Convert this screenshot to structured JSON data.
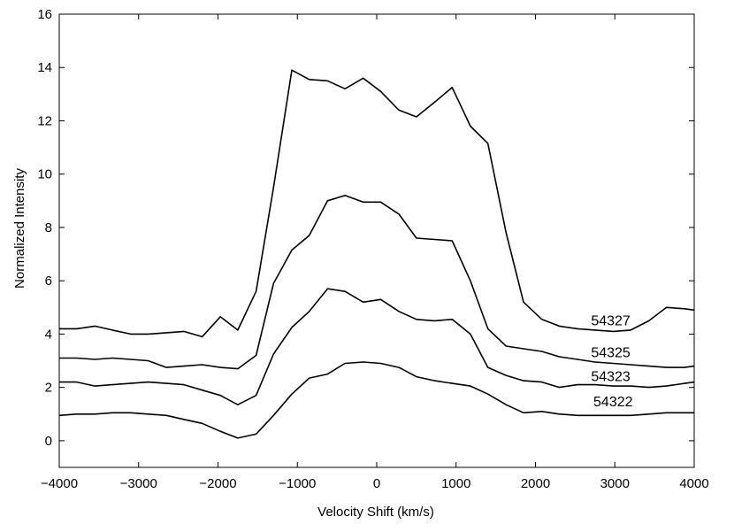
{
  "chart_data": {
    "type": "line",
    "title": "",
    "xlabel": "Velocity Shift (km/s)",
    "ylabel": "Normalized Intensity",
    "xlim": [
      -4000,
      4000
    ],
    "ylim": [
      -1,
      16
    ],
    "xticks": [
      -4000,
      -3000,
      -2000,
      -1000,
      0,
      1000,
      2000,
      3000,
      4000
    ],
    "xtick_labels": [
      "−4000",
      "−3000",
      "−2000",
      "−1000",
      "0",
      "1000",
      "2000",
      "3000",
      "4000"
    ],
    "yticks": [
      0,
      2,
      4,
      6,
      8,
      10,
      12,
      14,
      16
    ],
    "ytick_labels": [
      "0",
      "2",
      "4",
      "6",
      "8",
      "10",
      "12",
      "14",
      "16"
    ],
    "grid": false,
    "legend": "none",
    "x": [
      -4000,
      -3780,
      -3550,
      -3330,
      -3100,
      -2880,
      -2650,
      -2430,
      -2200,
      -1970,
      -1750,
      -1520,
      -1300,
      -1070,
      -850,
      -620,
      -400,
      -170,
      50,
      280,
      500,
      730,
      950,
      1180,
      1400,
      1630,
      1850,
      2080,
      2300,
      2530,
      2750,
      2980,
      3200,
      3430,
      3650,
      3880,
      4000
    ],
    "series": [
      {
        "name": "54327",
        "label_at": [
          2700,
          4.5
        ],
        "values": [
          4.2,
          4.2,
          4.3,
          4.15,
          4.0,
          4.0,
          4.05,
          4.1,
          3.9,
          4.65,
          4.15,
          5.6,
          9.5,
          13.9,
          13.55,
          13.5,
          13.2,
          13.6,
          13.1,
          12.4,
          12.15,
          12.7,
          13.25,
          11.8,
          11.15,
          7.8,
          5.2,
          4.55,
          4.3,
          4.2,
          4.15,
          4.1,
          4.15,
          4.5,
          5.0,
          4.95,
          4.9
        ]
      },
      {
        "name": "54325",
        "label_at": [
          2700,
          3.3
        ],
        "values": [
          3.1,
          3.1,
          3.05,
          3.1,
          3.05,
          3.0,
          2.75,
          2.8,
          2.85,
          2.75,
          2.7,
          3.2,
          5.9,
          7.15,
          7.7,
          9.0,
          9.2,
          8.95,
          8.95,
          8.5,
          7.6,
          7.55,
          7.5,
          6.0,
          4.2,
          3.55,
          3.45,
          3.35,
          3.15,
          3.05,
          2.95,
          2.9,
          2.85,
          2.8,
          2.75,
          2.75,
          2.8
        ]
      },
      {
        "name": "54323",
        "label_at": [
          2700,
          2.4
        ],
        "values": [
          2.2,
          2.2,
          2.05,
          2.1,
          2.15,
          2.2,
          2.15,
          2.1,
          1.9,
          1.7,
          1.35,
          1.7,
          3.25,
          4.25,
          4.85,
          5.7,
          5.6,
          5.2,
          5.3,
          4.85,
          4.55,
          4.5,
          4.55,
          4.0,
          2.75,
          2.45,
          2.25,
          2.2,
          2.0,
          2.1,
          2.1,
          2.05,
          2.05,
          2.0,
          2.05,
          2.15,
          2.2
        ]
      },
      {
        "name": "54322",
        "label_at": [
          2730,
          1.45
        ],
        "values": [
          0.95,
          1.0,
          1.0,
          1.05,
          1.05,
          1.0,
          0.95,
          0.8,
          0.65,
          0.35,
          0.1,
          0.25,
          0.95,
          1.75,
          2.35,
          2.5,
          2.9,
          2.95,
          2.9,
          2.75,
          2.4,
          2.25,
          2.15,
          2.05,
          1.75,
          1.35,
          1.05,
          1.1,
          1.0,
          0.95,
          0.95,
          0.95,
          0.95,
          1.0,
          1.05,
          1.05,
          1.05
        ]
      }
    ]
  }
}
